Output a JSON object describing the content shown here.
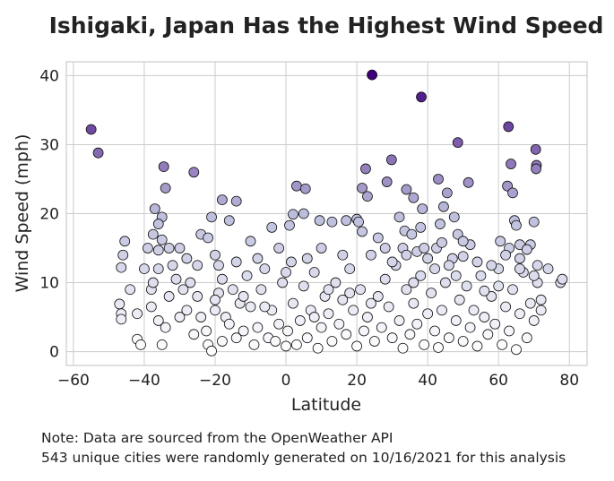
{
  "chart_data": {
    "type": "scatter",
    "title": "Ishigaki, Japan Has the Highest Wind Speed",
    "xlabel": "Latitude",
    "ylabel": "Wind Speed (mph)",
    "xlim": [
      -62,
      85
    ],
    "ylim": [
      -2,
      42
    ],
    "xticks": [
      -60,
      -40,
      -20,
      0,
      20,
      40,
      60,
      80
    ],
    "yticks": [
      0,
      10,
      20,
      30,
      40
    ],
    "grid": true,
    "color_scale": {
      "low": "#ffffff",
      "mid": "#bcbddc",
      "high": "#3f007d",
      "min": 0,
      "max": 40
    },
    "points": [
      [
        -55,
        32.2
      ],
      [
        -53,
        28.8
      ],
      [
        24.3,
        40.1
      ],
      [
        38.2,
        36.9
      ],
      [
        48.5,
        30.3
      ],
      [
        62.8,
        32.6
      ],
      [
        70.5,
        29.3
      ],
      [
        70.7,
        27.0
      ],
      [
        70.6,
        26.5
      ],
      [
        29.8,
        27.8
      ],
      [
        22.5,
        26.5
      ],
      [
        28.5,
        24.6
      ],
      [
        51.5,
        24.5
      ],
      [
        63.5,
        27.2
      ],
      [
        -34.5,
        26.8
      ],
      [
        -26.0,
        26.0
      ],
      [
        -34.0,
        23.7
      ],
      [
        -18.0,
        22.0
      ],
      [
        -14.0,
        21.8
      ],
      [
        5.0,
        20.0
      ],
      [
        2.0,
        19.9
      ],
      [
        1.0,
        18.3
      ],
      [
        -37.0,
        20.7
      ],
      [
        -35.0,
        19.5
      ],
      [
        -36.0,
        18.5
      ],
      [
        -37.5,
        17.0
      ],
      [
        -35.0,
        16.2
      ],
      [
        -45.5,
        16.0
      ],
      [
        -46.0,
        14.0
      ],
      [
        -46.5,
        12.2
      ],
      [
        -39.0,
        15.0
      ],
      [
        -36.0,
        14.7
      ],
      [
        -33.0,
        15.0
      ],
      [
        -30.0,
        15.0
      ],
      [
        -21.0,
        19.5
      ],
      [
        -24.0,
        17.0
      ],
      [
        -22.0,
        16.5
      ],
      [
        -20.0,
        14.0
      ],
      [
        -19.0,
        12.5
      ],
      [
        3.0,
        24.0
      ],
      [
        5.5,
        23.6
      ],
      [
        9.5,
        19.0
      ],
      [
        13.0,
        18.8
      ],
      [
        17.0,
        19.0
      ],
      [
        20.0,
        19.2
      ],
      [
        21.5,
        23.7
      ],
      [
        23.0,
        22.5
      ],
      [
        20.5,
        18.8
      ],
      [
        21.5,
        17.4
      ],
      [
        34.0,
        23.5
      ],
      [
        36.0,
        22.3
      ],
      [
        38.5,
        20.7
      ],
      [
        33.5,
        17.5
      ],
      [
        35.5,
        17.0
      ],
      [
        33.0,
        15.0
      ],
      [
        37.0,
        14.5
      ],
      [
        39.0,
        15.0
      ],
      [
        43.0,
        25.0
      ],
      [
        45.5,
        23.0
      ],
      [
        44.5,
        21.0
      ],
      [
        47.5,
        19.5
      ],
      [
        48.5,
        17.0
      ],
      [
        43.5,
        18.5
      ],
      [
        42.5,
        15.0
      ],
      [
        62.5,
        24.0
      ],
      [
        64.0,
        23.0
      ],
      [
        64.5,
        19.0
      ],
      [
        65.0,
        18.3
      ],
      [
        60.5,
        16.0
      ],
      [
        63.0,
        15.0
      ],
      [
        66.0,
        15.5
      ],
      [
        70.0,
        18.8
      ],
      [
        69.0,
        15.5
      ],
      [
        71.0,
        12.5
      ],
      [
        72.0,
        7.5
      ],
      [
        74.0,
        12.0
      ],
      [
        -47.0,
        6.9
      ],
      [
        -46.5,
        5.5
      ],
      [
        -46.5,
        4.7
      ],
      [
        -42.0,
        5.5
      ],
      [
        -42.0,
        1.8
      ],
      [
        -41.0,
        1.0
      ],
      [
        -38.0,
        9.0
      ],
      [
        -38.0,
        6.5
      ],
      [
        -37.5,
        10.0
      ],
      [
        -36.0,
        4.5
      ],
      [
        -35.0,
        1.0
      ],
      [
        -34.0,
        3.5
      ],
      [
        -33.0,
        8.0
      ],
      [
        -32.0,
        12.5
      ],
      [
        -31.0,
        10.5
      ],
      [
        -29.0,
        9.0
      ],
      [
        -28.0,
        6.0
      ],
      [
        -27.0,
        10.0
      ],
      [
        -26.0,
        2.5
      ],
      [
        -25.0,
        8.0
      ],
      [
        -24.0,
        5.0
      ],
      [
        -22.5,
        3.0
      ],
      [
        -22.0,
        1.0
      ],
      [
        -21.0,
        0.1
      ],
      [
        -20.0,
        6.0
      ],
      [
        -19.0,
        8.5
      ],
      [
        -18.0,
        1.5
      ],
      [
        -17.0,
        5.0
      ],
      [
        -16.0,
        4.0
      ],
      [
        -15.0,
        9.0
      ],
      [
        -14.0,
        2.0
      ],
      [
        -13.0,
        7.0
      ],
      [
        -12.0,
        3.0
      ],
      [
        -11.0,
        11.0
      ],
      [
        -10.0,
        6.5
      ],
      [
        -9.0,
        1.0
      ],
      [
        -8.0,
        3.5
      ],
      [
        -7.0,
        9.0
      ],
      [
        -6.0,
        12.0
      ],
      [
        -5.0,
        2.0
      ],
      [
        -4.0,
        6.0
      ],
      [
        -3.0,
        1.5
      ],
      [
        -2.0,
        4.0
      ],
      [
        -1.0,
        10.0
      ],
      [
        0.0,
        0.8
      ],
      [
        0.5,
        3.0
      ],
      [
        1.5,
        13.0
      ],
      [
        2.0,
        7.0
      ],
      [
        3.0,
        1.0
      ],
      [
        4.0,
        4.5
      ],
      [
        5.0,
        9.5
      ],
      [
        6.0,
        2.0
      ],
      [
        7.0,
        6.0
      ],
      [
        8.0,
        11.5
      ],
      [
        9.0,
        0.5
      ],
      [
        10.0,
        3.5
      ],
      [
        11.0,
        8.0
      ],
      [
        12.0,
        5.5
      ],
      [
        13.0,
        1.5
      ],
      [
        14.0,
        10.0
      ],
      [
        15.0,
        4.0
      ],
      [
        16.0,
        7.5
      ],
      [
        17.0,
        2.5
      ],
      [
        18.0,
        12.0
      ],
      [
        19.0,
        6.0
      ],
      [
        20.0,
        0.8
      ],
      [
        21.0,
        9.0
      ],
      [
        22.0,
        3.0
      ],
      [
        23.0,
        5.0
      ],
      [
        24.0,
        14.0
      ],
      [
        25.0,
        1.5
      ],
      [
        26.0,
        8.0
      ],
      [
        27.0,
        3.5
      ],
      [
        28.0,
        10.5
      ],
      [
        29.0,
        6.5
      ],
      [
        30.0,
        2.0
      ],
      [
        31.0,
        12.5
      ],
      [
        32.0,
        4.5
      ],
      [
        33.0,
        0.5
      ],
      [
        34.0,
        9.0
      ],
      [
        35.0,
        2.5
      ],
      [
        36.0,
        7.0
      ],
      [
        37.0,
        4.0
      ],
      [
        38.0,
        11.0
      ],
      [
        39.0,
        1.0
      ],
      [
        40.0,
        5.5
      ],
      [
        41.0,
        8.5
      ],
      [
        42.0,
        3.0
      ],
      [
        43.0,
        0.6
      ],
      [
        44.0,
        6.0
      ],
      [
        45.0,
        10.0
      ],
      [
        46.0,
        2.0
      ],
      [
        47.0,
        13.5
      ],
      [
        48.0,
        4.5
      ],
      [
        49.0,
        7.5
      ],
      [
        50.0,
        1.5
      ],
      [
        51.0,
        9.5
      ],
      [
        52.0,
        3.5
      ],
      [
        53.0,
        6.0
      ],
      [
        54.0,
        0.8
      ],
      [
        55.0,
        11.0
      ],
      [
        56.0,
        5.0
      ],
      [
        57.0,
        2.5
      ],
      [
        58.0,
        8.0
      ],
      [
        59.0,
        4.0
      ],
      [
        60.0,
        12.0
      ],
      [
        61.0,
        1.0
      ],
      [
        62.0,
        6.5
      ],
      [
        63.0,
        3.0
      ],
      [
        64.0,
        9.0
      ],
      [
        65.0,
        0.3
      ],
      [
        66.0,
        5.5
      ],
      [
        67.0,
        11.5
      ],
      [
        68.0,
        2.0
      ],
      [
        69.0,
        7.0
      ],
      [
        70.0,
        4.5
      ],
      [
        71.0,
        10.0
      ],
      [
        72.0,
        6.0
      ],
      [
        77.5,
        10.0
      ],
      [
        78.0,
        10.5
      ],
      [
        -44.0,
        9.0
      ],
      [
        -40.0,
        12.0
      ],
      [
        -30.0,
        5.0
      ],
      [
        -25.0,
        12.5
      ],
      [
        -18.0,
        10.5
      ],
      [
        -12.0,
        8.0
      ],
      [
        -6.0,
        6.5
      ],
      [
        0.0,
        11.5
      ],
      [
        6.0,
        13.5
      ],
      [
        12.0,
        9.0
      ],
      [
        18.0,
        8.5
      ],
      [
        24.0,
        7.0
      ],
      [
        30.0,
        13.0
      ],
      [
        36.0,
        10.0
      ],
      [
        42.0,
        12.0
      ],
      [
        48.0,
        11.0
      ],
      [
        54.0,
        13.0
      ],
      [
        60.0,
        9.5
      ],
      [
        66.0,
        13.5
      ],
      [
        70.0,
        11.0
      ],
      [
        -36.0,
        12.0
      ],
      [
        -20.0,
        7.5
      ],
      [
        -8.0,
        13.5
      ],
      [
        8.0,
        5.0
      ],
      [
        28.0,
        15.0
      ],
      [
        40.0,
        13.5
      ],
      [
        50.0,
        13.8
      ],
      [
        58.0,
        12.5
      ],
      [
        -28.0,
        13.5
      ],
      [
        -14.0,
        13.0
      ],
      [
        16.0,
        14.0
      ],
      [
        34.0,
        14.0
      ],
      [
        46.0,
        12.5
      ],
      [
        56.0,
        8.8
      ],
      [
        68.0,
        14.8
      ],
      [
        66.0,
        12.0
      ],
      [
        -10.0,
        16.0
      ],
      [
        -2.0,
        15.0
      ],
      [
        10.0,
        15.0
      ],
      [
        26.0,
        16.5
      ],
      [
        44.0,
        15.8
      ],
      [
        52.0,
        15.5
      ],
      [
        62.0,
        14.0
      ],
      [
        -4.0,
        18.0
      ],
      [
        -16.0,
        19.0
      ],
      [
        32.0,
        19.5
      ],
      [
        38.0,
        18.0
      ],
      [
        50.0,
        16.0
      ]
    ]
  },
  "footnotes": [
    "Note: Data are sourced from the OpenWeather API",
    "543 unique cities were randomly generated on 10/16/2021 for this analysis"
  ],
  "colors": {
    "grid": "#cccccc",
    "frame": "#cccccc",
    "marker_edge": "#111111",
    "text": "#222222"
  }
}
